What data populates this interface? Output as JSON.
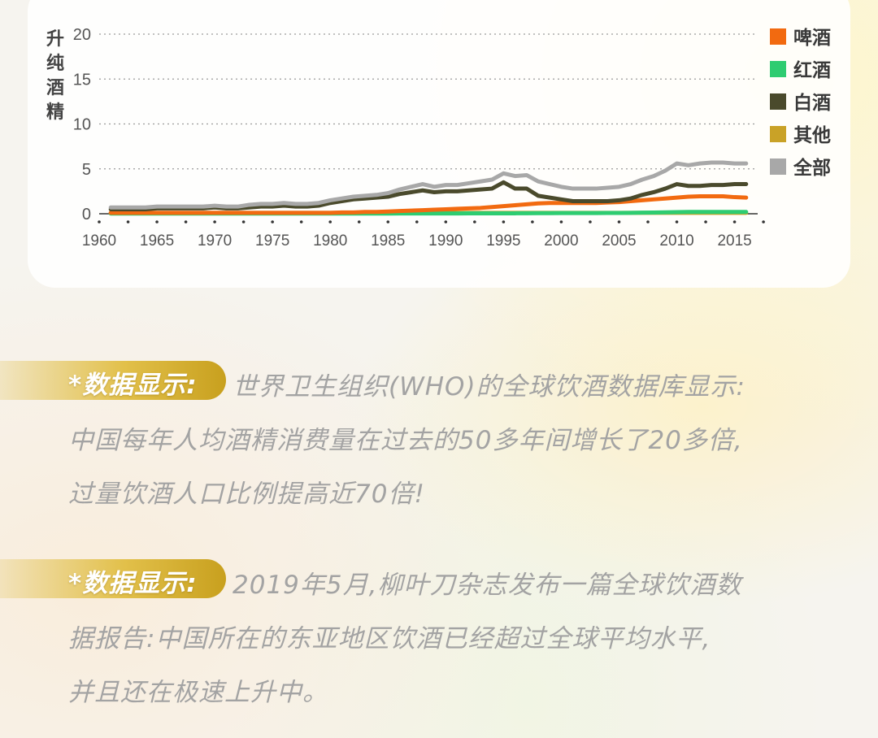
{
  "chart_data": {
    "type": "line",
    "ylabel": "升纯酒精",
    "ylim": [
      0,
      20
    ],
    "yticks": [
      0,
      5,
      10,
      15,
      20
    ],
    "xlim": [
      1960,
      2017
    ],
    "xticks": [
      1960,
      1965,
      1970,
      1975,
      1980,
      1985,
      1990,
      1995,
      2000,
      2005,
      2010,
      2015
    ],
    "grid": "dotted horizontal",
    "legend_position": "right",
    "x": [
      1961,
      1962,
      1963,
      1964,
      1965,
      1966,
      1967,
      1968,
      1969,
      1970,
      1971,
      1972,
      1973,
      1974,
      1975,
      1976,
      1977,
      1978,
      1979,
      1980,
      1981,
      1982,
      1983,
      1984,
      1985,
      1986,
      1987,
      1988,
      1989,
      1990,
      1991,
      1992,
      1993,
      1994,
      1995,
      1996,
      1997,
      1998,
      1999,
      2000,
      2001,
      2002,
      2003,
      2004,
      2005,
      2006,
      2007,
      2008,
      2009,
      2010,
      2011,
      2012,
      2013,
      2014,
      2015,
      2016
    ],
    "series": [
      {
        "name": "啤酒",
        "color": "#f26a10",
        "values": [
          0.1,
          0.1,
          0.1,
          0.1,
          0.1,
          0.1,
          0.1,
          0.1,
          0.1,
          0.1,
          0.1,
          0.1,
          0.1,
          0.1,
          0.1,
          0.1,
          0.1,
          0.1,
          0.1,
          0.1,
          0.15,
          0.15,
          0.2,
          0.2,
          0.25,
          0.3,
          0.35,
          0.4,
          0.45,
          0.5,
          0.55,
          0.6,
          0.65,
          0.75,
          0.85,
          0.95,
          1.05,
          1.15,
          1.2,
          1.2,
          1.2,
          1.2,
          1.2,
          1.25,
          1.3,
          1.4,
          1.5,
          1.6,
          1.7,
          1.8,
          1.9,
          1.95,
          1.95,
          1.95,
          1.85,
          1.8
        ]
      },
      {
        "name": "红酒",
        "color": "#2ecc71",
        "values": [
          0.02,
          0.02,
          0.02,
          0.02,
          0.02,
          0.02,
          0.02,
          0.02,
          0.02,
          0.02,
          0.02,
          0.02,
          0.02,
          0.02,
          0.02,
          0.02,
          0.02,
          0.02,
          0.02,
          0.02,
          0.02,
          0.02,
          0.02,
          0.02,
          0.02,
          0.03,
          0.03,
          0.03,
          0.03,
          0.03,
          0.03,
          0.04,
          0.04,
          0.05,
          0.05,
          0.05,
          0.06,
          0.07,
          0.07,
          0.08,
          0.08,
          0.08,
          0.08,
          0.09,
          0.09,
          0.1,
          0.12,
          0.14,
          0.16,
          0.18,
          0.2,
          0.2,
          0.2,
          0.2,
          0.2,
          0.2
        ]
      },
      {
        "name": "白酒",
        "color": "#4a4a2c",
        "values": [
          0.5,
          0.5,
          0.5,
          0.5,
          0.6,
          0.6,
          0.6,
          0.6,
          0.6,
          0.7,
          0.6,
          0.6,
          0.7,
          0.8,
          0.8,
          0.9,
          0.8,
          0.8,
          0.9,
          1.2,
          1.4,
          1.6,
          1.7,
          1.8,
          1.9,
          2.2,
          2.4,
          2.6,
          2.4,
          2.5,
          2.5,
          2.6,
          2.7,
          2.8,
          3.5,
          2.8,
          2.8,
          2.0,
          1.8,
          1.6,
          1.4,
          1.4,
          1.4,
          1.4,
          1.5,
          1.7,
          2.1,
          2.4,
          2.8,
          3.3,
          3.1,
          3.1,
          3.2,
          3.2,
          3.3,
          3.3
        ]
      },
      {
        "name": "其他",
        "color": "#c9a227",
        "values": [
          0.1,
          0.1,
          0.1,
          0.1,
          0.1,
          0.1,
          0.1,
          0.1,
          0.1,
          0.1,
          0.1,
          0.1,
          0.1,
          0.1,
          0.1,
          0.1,
          0.1,
          0.1,
          0.1,
          0.1,
          0.1,
          0.1,
          0.1,
          0.1,
          0.1,
          0.1,
          0.1,
          0.1,
          0.1,
          0.1,
          0.1,
          0.1,
          0.1,
          0.1,
          0.1,
          0.1,
          0.1,
          0.1,
          0.1,
          0.1,
          0.1,
          0.1,
          0.1,
          0.1,
          0.1,
          0.1,
          0.1,
          0.1,
          0.1,
          0.1,
          0.1,
          0.1,
          0.1,
          0.1,
          0.1,
          0.1
        ]
      },
      {
        "name": "全部",
        "color": "#a8a8a8",
        "values": [
          0.7,
          0.7,
          0.7,
          0.7,
          0.8,
          0.8,
          0.8,
          0.8,
          0.8,
          0.9,
          0.8,
          0.8,
          1.0,
          1.1,
          1.1,
          1.2,
          1.1,
          1.1,
          1.2,
          1.5,
          1.7,
          1.9,
          2.0,
          2.1,
          2.3,
          2.7,
          3.0,
          3.3,
          3.0,
          3.2,
          3.2,
          3.4,
          3.6,
          3.8,
          4.5,
          4.2,
          4.3,
          3.6,
          3.3,
          3.0,
          2.8,
          2.8,
          2.8,
          2.9,
          3.0,
          3.3,
          3.8,
          4.2,
          4.8,
          5.6,
          5.4,
          5.6,
          5.7,
          5.7,
          5.6,
          5.6
        ]
      }
    ]
  },
  "paragraphs": [
    {
      "tag": "*数据显示:",
      "lines": [
        "世界卫生组织(WHO)的全球饮酒数据库显示:",
        "中国每年人均酒精消费量在过去的50多年间增长了20多倍,",
        "过量饮酒人口比例提高近70倍!"
      ]
    },
    {
      "tag": "*数据显示:",
      "lines": [
        "2019年5月,柳叶刀杂志发布一篇全球饮酒数",
        "据报告:中国所在的东亚地区饮酒已经超过全球平均水平,",
        "并且还在极速上升中。"
      ]
    }
  ]
}
